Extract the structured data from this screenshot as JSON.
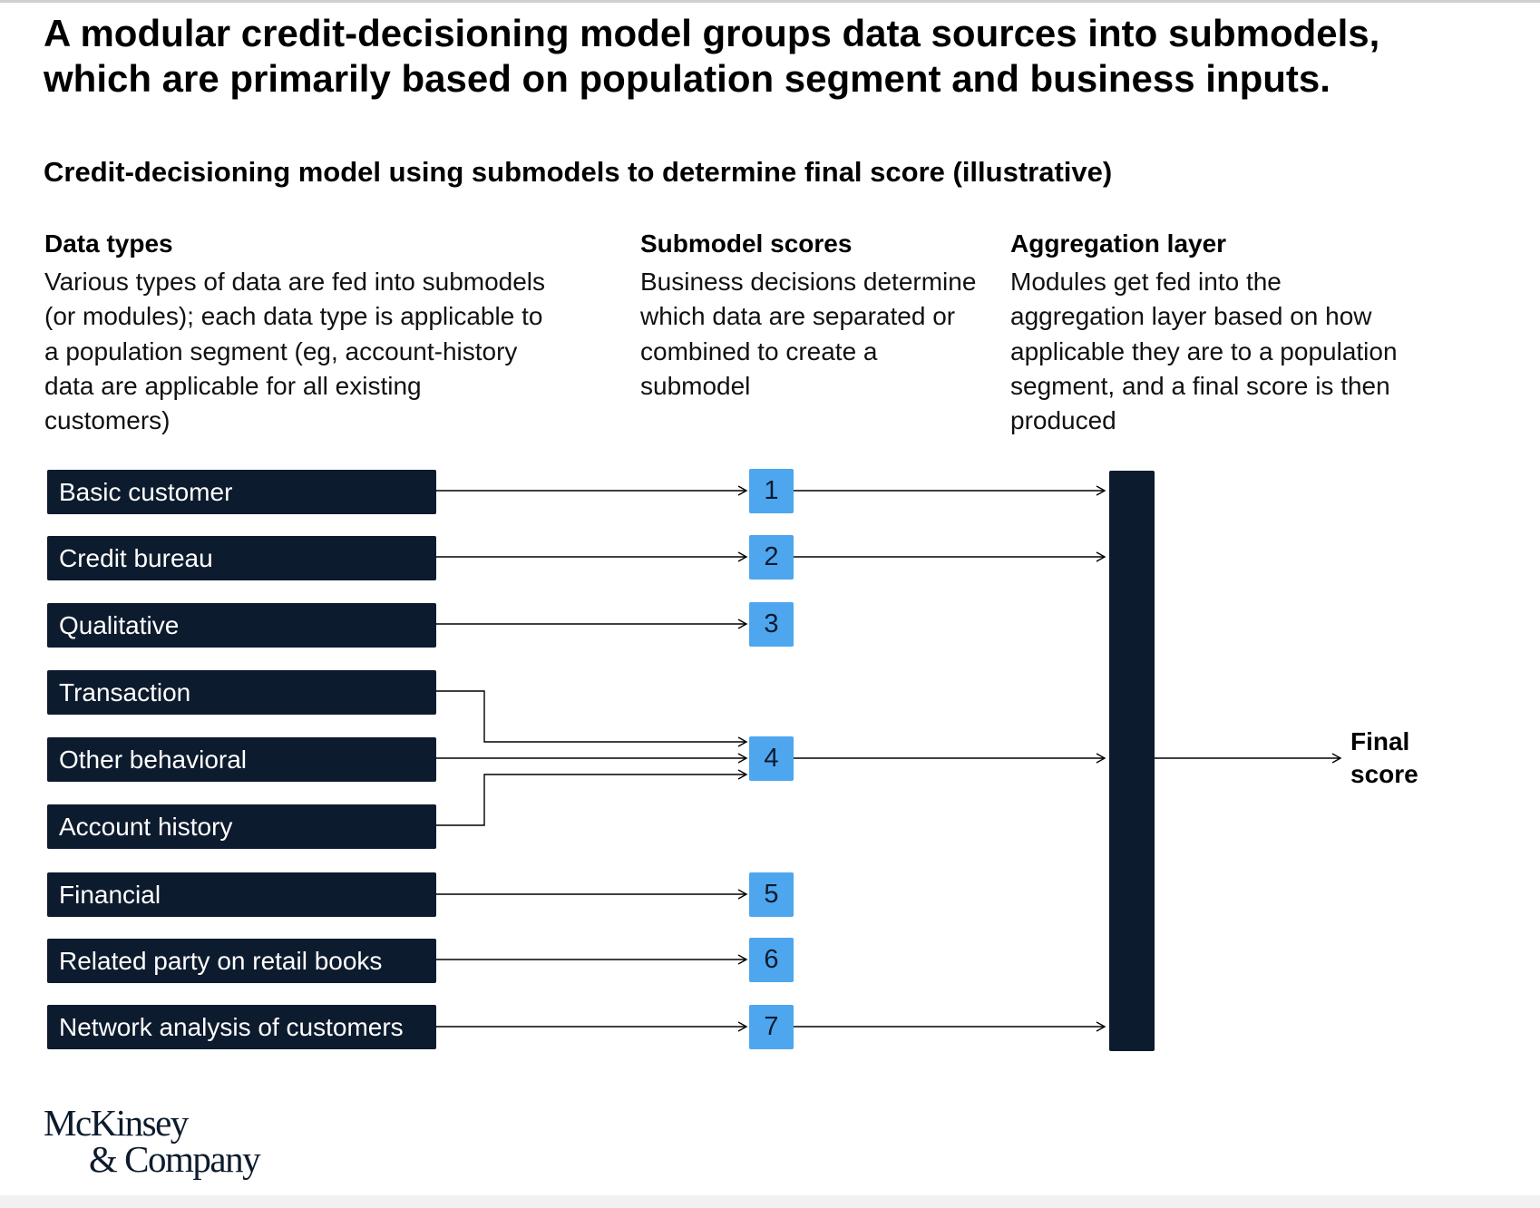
{
  "title": "A modular credit-decisioning model groups data sources into submodels, which are primarily based on population segment and business inputs.",
  "subtitle": "Credit-decisioning model using submodels to determine final score (illustrative)",
  "columns": {
    "data_types": {
      "heading": "Data types",
      "description": "Various types of data are fed into submodels (or modules); each data type is applicable to a population segment (eg, account-history data are applicable for all existing customers)"
    },
    "submodel_scores": {
      "heading": "Submodel scores",
      "description": "Business decisions determine which data are separated or combined to create a submodel"
    },
    "aggregation_layer": {
      "heading": "Aggregation layer",
      "description": "Modules get fed into the aggregation layer based on how applicable they are to a population segment, and a final score is then produced"
    }
  },
  "data_types": [
    "Basic customer",
    "Credit bureau",
    "Qualitative",
    "Transaction",
    "Other behavioral",
    "Account history",
    "Financial",
    "Related party on retail books",
    "Network analysis of customers"
  ],
  "submodels": [
    "1",
    "2",
    "3",
    "4",
    "5",
    "6",
    "7"
  ],
  "flows": {
    "data_to_submodel": [
      {
        "from": "Basic customer",
        "to": "1"
      },
      {
        "from": "Credit bureau",
        "to": "2"
      },
      {
        "from": "Qualitative",
        "to": "3"
      },
      {
        "from": "Transaction",
        "to": "4"
      },
      {
        "from": "Other behavioral",
        "to": "4"
      },
      {
        "from": "Account history",
        "to": "4"
      },
      {
        "from": "Financial",
        "to": "5"
      },
      {
        "from": "Related party on retail books",
        "to": "6"
      },
      {
        "from": "Network analysis of customers",
        "to": "7"
      }
    ],
    "submodels_into_aggregation": [
      "1",
      "2",
      "4",
      "7"
    ]
  },
  "final_label": "Final\nscore",
  "logo": {
    "line1": "McKinsey",
    "line2": "& Company"
  },
  "colors": {
    "data_box": "#0d1b2e",
    "submodel_box": "#4ea6ee",
    "aggregation_bar": "#0d1b2e",
    "text": "#000000"
  }
}
